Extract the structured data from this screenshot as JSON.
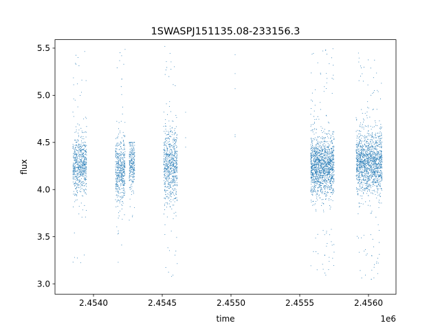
{
  "chart_data": {
    "type": "scatter",
    "title": "1SWASPJ151135.08-233156.3",
    "xlabel": "time",
    "ylabel": "flux",
    "x_offset_label": "1e6",
    "xlim": [
      2.45372,
      2.4562
    ],
    "ylim": [
      2.89,
      5.59
    ],
    "x_ticks": [
      {
        "value": 2.454,
        "label": "2.4540"
      },
      {
        "value": 2.4545,
        "label": "2.4545"
      },
      {
        "value": 2.455,
        "label": "2.4550"
      },
      {
        "value": 2.4555,
        "label": "2.4555"
      },
      {
        "value": 2.456,
        "label": "2.4560"
      }
    ],
    "y_ticks": [
      {
        "value": 3.0,
        "label": "3.0"
      },
      {
        "value": 3.5,
        "label": "3.5"
      },
      {
        "value": 4.0,
        "label": "4.0"
      },
      {
        "value": 4.5,
        "label": "4.5"
      },
      {
        "value": 5.0,
        "label": "5.0"
      },
      {
        "value": 5.5,
        "label": "5.5"
      }
    ],
    "grid": false,
    "legend": "none",
    "marker_color": "#1f77b4",
    "clusters": [
      {
        "x_range": [
          2.45385,
          2.45395
        ],
        "y_center": 4.25,
        "y_spread": 0.15,
        "y_range": [
          3.02,
          5.5
        ],
        "count": 650
      },
      {
        "x_range": [
          2.45416,
          2.45423
        ],
        "y_center": 4.2,
        "y_spread": 0.17,
        "y_range": [
          3.18,
          5.52
        ],
        "count": 500
      },
      {
        "x_range": [
          2.45426,
          2.4543
        ],
        "y_center": 4.28,
        "y_spread": 0.13,
        "y_range": [
          3.6,
          4.5
        ],
        "count": 250
      },
      {
        "x_range": [
          2.45451,
          2.45461
        ],
        "y_center": 4.25,
        "y_spread": 0.2,
        "y_range": [
          3.05,
          5.52
        ],
        "count": 700
      },
      {
        "x_range": [
          2.45558,
          2.45575
        ],
        "y_center": 4.25,
        "y_spread": 0.15,
        "y_range": [
          3.02,
          5.5
        ],
        "count": 1500
      },
      {
        "x_range": [
          2.45591,
          2.4561
        ],
        "y_center": 4.28,
        "y_spread": 0.16,
        "y_range": [
          3.02,
          5.45
        ],
        "count": 1500
      }
    ],
    "points": [
      {
        "x": 2.45467,
        "y": 4.82
      },
      {
        "x": 2.45467,
        "y": 4.55
      },
      {
        "x": 2.45467,
        "y": 4.45
      },
      {
        "x": 2.45503,
        "y": 5.43
      },
      {
        "x": 2.45503,
        "y": 5.23
      },
      {
        "x": 2.45503,
        "y": 5.07
      },
      {
        "x": 2.45503,
        "y": 4.58
      },
      {
        "x": 2.45503,
        "y": 4.56
      }
    ]
  }
}
